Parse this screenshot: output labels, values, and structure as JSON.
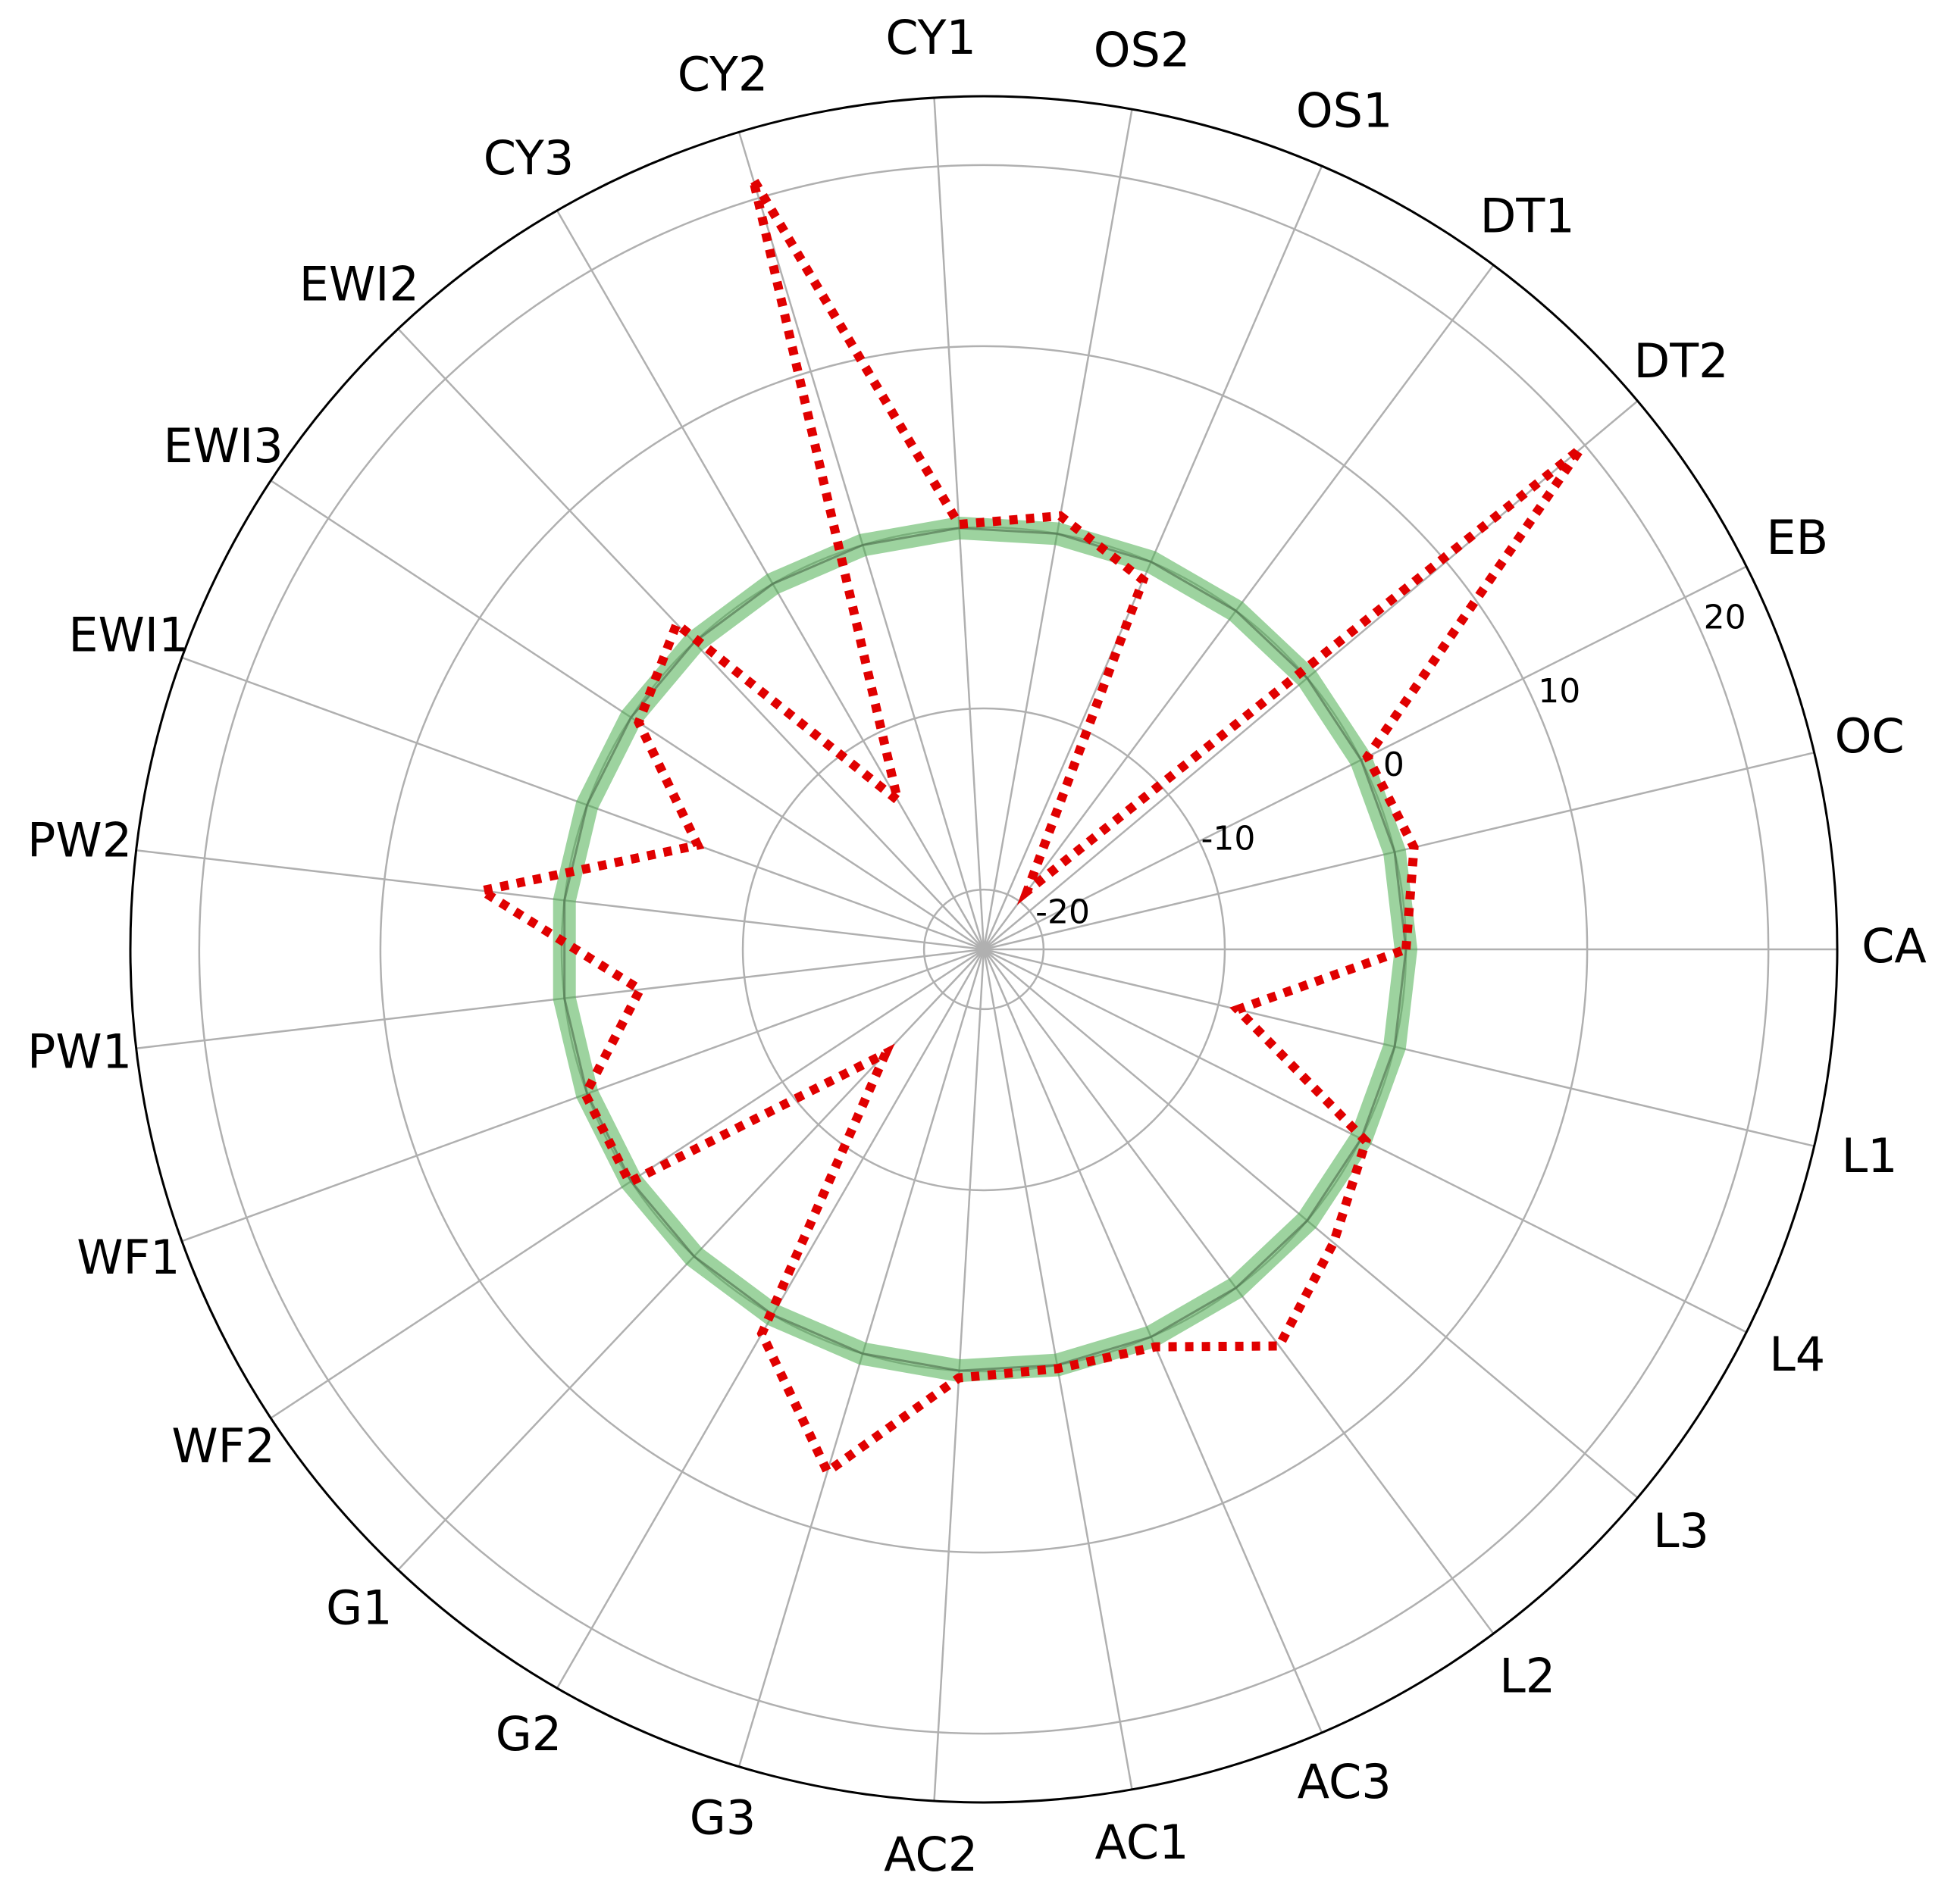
{
  "chart_data": {
    "type": "radar",
    "categories": [
      "CA",
      "OC",
      "EB",
      "DT2",
      "DT1",
      "OS1",
      "OS2",
      "CY1",
      "CY2",
      "CY3",
      "EWI2",
      "EWI3",
      "EWI1",
      "PW2",
      "PW1",
      "WF1",
      "WF2",
      "G1",
      "G2",
      "G3",
      "AC2",
      "AC1",
      "AC3",
      "L2",
      "L3",
      "L4",
      "L1"
    ],
    "ylim": [
      -23.3,
      23.8
    ],
    "yticks": [
      -20,
      -10,
      0,
      10,
      20
    ],
    "grid": true,
    "series": [
      {
        "color": "#4caf50",
        "values": [
          0,
          0,
          0,
          0,
          0,
          0,
          0,
          0,
          0,
          0,
          0,
          0,
          0,
          0,
          0,
          0,
          0,
          0,
          0,
          0,
          0,
          0,
          0,
          0,
          0,
          0,
          0
        ]
      },
      {
        "color": "#e00000",
        "values": [
          0.0,
          1.1,
          0.4,
          19.7,
          -19.3,
          -1.1,
          1.0,
          0.2,
          21.1,
          -13.8,
          1.4,
          -0.5,
          -6.5,
          4.6,
          -4.2,
          0.1,
          0.1,
          -15.4,
          1.2,
          6.8,
          0.4,
          0.2,
          0.6,
          4.0,
          1.9,
          0.3,
          -8.9
        ]
      }
    ]
  }
}
